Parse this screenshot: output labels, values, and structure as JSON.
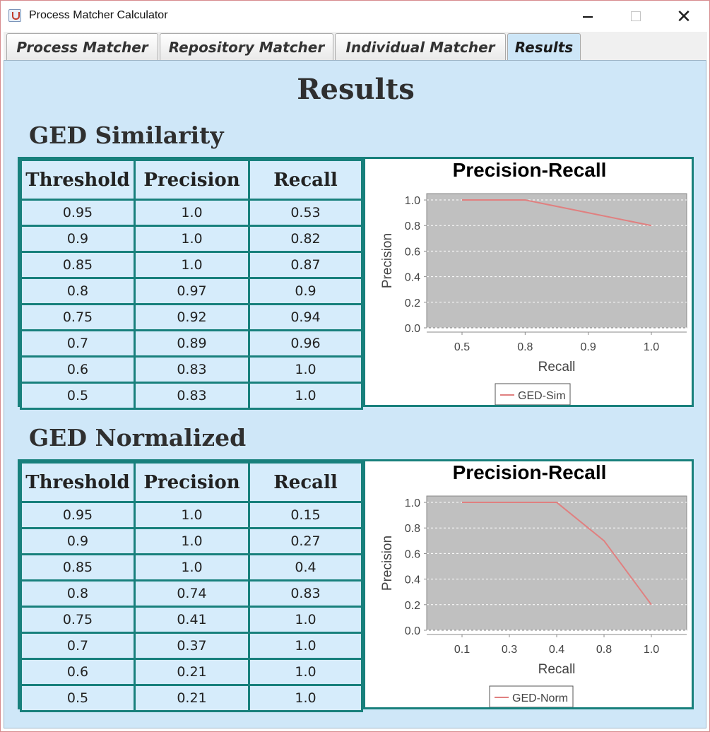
{
  "window": {
    "title": "Process Matcher Calculator",
    "minimize_glyph": "",
    "maximize_glyph": "",
    "close_glyph": "✕"
  },
  "tabs": [
    {
      "label": "Process Matcher"
    },
    {
      "label": "Repository Matcher"
    },
    {
      "label": "Individual Matcher"
    },
    {
      "label": "Results",
      "active": true
    }
  ],
  "results": {
    "title": "Results",
    "headers": {
      "threshold": "Threshold",
      "precision": "Precision",
      "recall": "Recall"
    },
    "sections": [
      {
        "title": "GED Similarity",
        "rows": [
          {
            "threshold": "0.95",
            "precision": "1.0",
            "recall": "0.53"
          },
          {
            "threshold": "0.9",
            "precision": "1.0",
            "recall": "0.82"
          },
          {
            "threshold": "0.85",
            "precision": "1.0",
            "recall": "0.87"
          },
          {
            "threshold": "0.8",
            "precision": "0.97",
            "recall": "0.9"
          },
          {
            "threshold": "0.75",
            "precision": "0.92",
            "recall": "0.94"
          },
          {
            "threshold": "0.7",
            "precision": "0.89",
            "recall": "0.96"
          },
          {
            "threshold": "0.6",
            "precision": "0.83",
            "recall": "1.0"
          },
          {
            "threshold": "0.5",
            "precision": "0.83",
            "recall": "1.0"
          }
        ]
      },
      {
        "title": "GED Normalized",
        "rows": [
          {
            "threshold": "0.95",
            "precision": "1.0",
            "recall": "0.15"
          },
          {
            "threshold": "0.9",
            "precision": "1.0",
            "recall": "0.27"
          },
          {
            "threshold": "0.85",
            "precision": "1.0",
            "recall": "0.4"
          },
          {
            "threshold": "0.8",
            "precision": "0.74",
            "recall": "0.83"
          },
          {
            "threshold": "0.75",
            "precision": "0.41",
            "recall": "1.0"
          },
          {
            "threshold": "0.7",
            "precision": "0.37",
            "recall": "1.0"
          },
          {
            "threshold": "0.6",
            "precision": "0.21",
            "recall": "1.0"
          },
          {
            "threshold": "0.5",
            "precision": "0.21",
            "recall": "1.0"
          }
        ]
      }
    ]
  },
  "chart_data": [
    {
      "type": "line",
      "title": "Precision-Recall",
      "xlabel": "Recall",
      "ylabel": "Precision",
      "x_ticks": [
        "0.5",
        "0.8",
        "0.9",
        "1.0"
      ],
      "y_ticks": [
        "0.0",
        "0.2",
        "0.4",
        "0.6",
        "0.8",
        "1.0"
      ],
      "ylim": [
        0,
        1.05
      ],
      "grid": true,
      "legend": "bottom",
      "background": "#c0c0c0",
      "line_color": "#e08080",
      "series": [
        {
          "name": "GED-Sim",
          "x": [
            "0.5",
            "0.8",
            "0.9",
            "1.0"
          ],
          "y": [
            1.0,
            1.0,
            0.9,
            0.8
          ]
        }
      ]
    },
    {
      "type": "line",
      "title": "Precision-Recall",
      "xlabel": "Recall",
      "ylabel": "Precision",
      "x_ticks": [
        "0.1",
        "0.3",
        "0.4",
        "0.8",
        "1.0"
      ],
      "y_ticks": [
        "0.0",
        "0.2",
        "0.4",
        "0.6",
        "0.8",
        "1.0"
      ],
      "ylim": [
        0,
        1.05
      ],
      "grid": true,
      "legend": "bottom",
      "background": "#c0c0c0",
      "line_color": "#e08080",
      "series": [
        {
          "name": "GED-Norm",
          "x": [
            "0.1",
            "0.3",
            "0.4",
            "0.8",
            "1.0"
          ],
          "y": [
            1.0,
            1.0,
            1.0,
            0.7,
            0.2
          ]
        }
      ]
    }
  ]
}
